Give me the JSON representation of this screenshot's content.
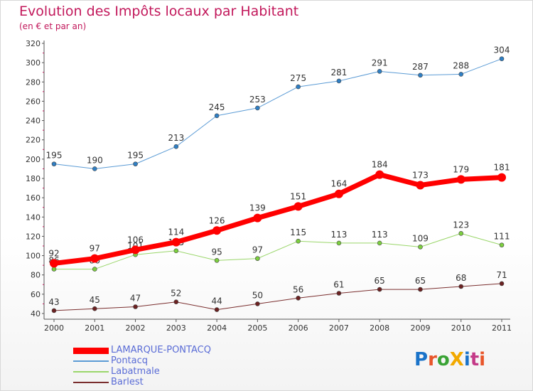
{
  "title": "Evolution des Impôts locaux par Habitant",
  "subtitle": "(en € et par an)",
  "brand": {
    "text": "ProXiti",
    "colors": [
      "#1a73c9",
      "#e8552a",
      "#3aa335",
      "#f2a900",
      "#1a73c9",
      "#c43a88",
      "#e8552a"
    ]
  },
  "chart_data": {
    "type": "line",
    "title": "Evolution des Impôts locaux par Habitant",
    "subtitle": "(en € et par an)",
    "xlabel": "",
    "ylabel": "",
    "x": [
      "2000",
      "2001",
      "2002",
      "2003",
      "2004",
      "2005",
      "2006",
      "2007",
      "2008",
      "2009",
      "2010",
      "2011"
    ],
    "ylim": [
      40,
      320
    ],
    "yticks": [
      40,
      60,
      80,
      100,
      120,
      140,
      160,
      180,
      200,
      220,
      240,
      260,
      280,
      300,
      320
    ],
    "grid": false,
    "legend_position": "bottom-left",
    "series": [
      {
        "name": "Pontacq",
        "color": "#5b9bd5",
        "marker": "#2f7fc4",
        "width": 1,
        "radius": 3,
        "labels_above": true,
        "values": [
          195,
          190,
          195,
          213,
          245,
          253,
          275,
          281,
          291,
          287,
          288,
          304
        ]
      },
      {
        "name": "Labatmale",
        "color": "#9ad66a",
        "marker": "#7ccf3f",
        "width": 1,
        "radius": 3,
        "labels_above": true,
        "values": [
          86,
          86,
          101,
          105,
          95,
          97,
          115,
          113,
          113,
          109,
          123,
          111
        ]
      },
      {
        "name": "Barlest",
        "color": "#7a2e2e",
        "marker": "#6b2121",
        "width": 1,
        "radius": 3,
        "labels_above": true,
        "values": [
          43,
          45,
          47,
          52,
          44,
          50,
          56,
          61,
          65,
          65,
          68,
          71
        ]
      },
      {
        "name": "LAMARQUE-PONTACQ",
        "color": "#ff0000",
        "marker": "#ff0000",
        "width": 7,
        "radius": 6,
        "labels_above": true,
        "values": [
          92,
          97,
          106,
          114,
          126,
          139,
          151,
          164,
          184,
          173,
          179,
          181
        ]
      }
    ],
    "legend_order": [
      "LAMARQUE-PONTACQ",
      "Pontacq",
      "Labatmale",
      "Barlest"
    ],
    "legend_text_color": "#5a6cd6"
  }
}
